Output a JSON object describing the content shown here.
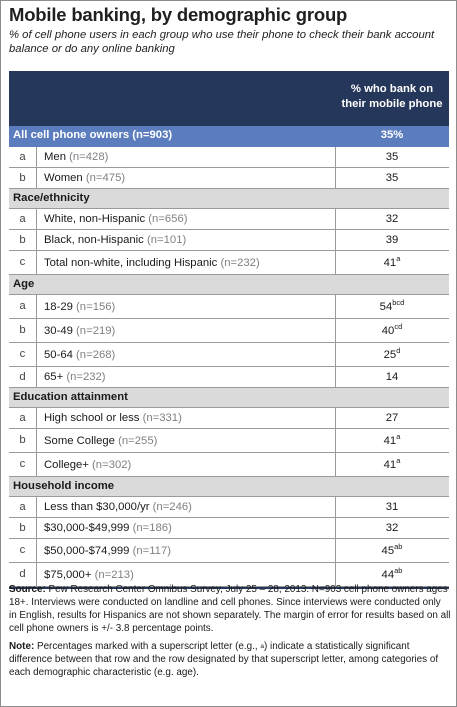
{
  "title": "Mobile banking, by demographic group",
  "subtitle": "% of cell phone users in each group who use their phone to check their bank account balance or do any online banking",
  "header": {
    "column_line1": "% who bank on",
    "column_line2": "their mobile phone"
  },
  "all": {
    "label": "All cell phone owners (n=903)",
    "value": "35%"
  },
  "rows_gender": [
    {
      "letter": "a",
      "label": "Men",
      "n": "(n=428)",
      "value": "35",
      "sup": ""
    },
    {
      "letter": "b",
      "label": "Women",
      "n": "(n=475)",
      "value": "35",
      "sup": ""
    }
  ],
  "sections": {
    "race": "Race/ethnicity",
    "age": "Age",
    "education": "Education attainment",
    "income": "Household income"
  },
  "rows_race": [
    {
      "letter": "a",
      "label": "White, non-Hispanic",
      "n": "(n=656)",
      "value": "32",
      "sup": ""
    },
    {
      "letter": "b",
      "label": "Black, non-Hispanic",
      "n": "(n=101)",
      "value": "39",
      "sup": ""
    },
    {
      "letter": "c",
      "label": "Total non-white, including Hispanic",
      "n": "(n=232)",
      "value": "41",
      "sup": "a"
    }
  ],
  "rows_age": [
    {
      "letter": "a",
      "label": "18-29",
      "n": "(n=156)",
      "value": "54",
      "sup": "bcd"
    },
    {
      "letter": "b",
      "label": "30-49",
      "n": "(n=219)",
      "value": "40",
      "sup": "cd"
    },
    {
      "letter": "c",
      "label": "50-64",
      "n": "(n=268)",
      "value": "25",
      "sup": "d"
    },
    {
      "letter": "d",
      "label": "65+",
      "n": "(n=232)",
      "value": "14",
      "sup": ""
    }
  ],
  "rows_education": [
    {
      "letter": "a",
      "label": "High school or less",
      "n": "(n=331)",
      "value": "27",
      "sup": ""
    },
    {
      "letter": "b",
      "label": "Some College",
      "n": "(n=255)",
      "value": "41",
      "sup": "a"
    },
    {
      "letter": "c",
      "label": "College+",
      "n": "(n=302)",
      "value": "41",
      "sup": "a"
    }
  ],
  "rows_income": [
    {
      "letter": "a",
      "label": "Less than $30,000/yr",
      "n": "(n=246)",
      "value": "31",
      "sup": ""
    },
    {
      "letter": "b",
      "label": "$30,000-$49,999",
      "n": "(n=186)",
      "value": "32",
      "sup": ""
    },
    {
      "letter": "c",
      "label": "$50,000-$74,999",
      "n": "(n=117)",
      "value": "45",
      "sup": "ab"
    },
    {
      "letter": "d",
      "label": "$75,000+",
      "n": "(n=213)",
      "value": "44",
      "sup": "ab"
    }
  ],
  "footer": {
    "source_label": "Source:",
    "source_text": " Pew Research Center Omnibus Survey, July 25 – 28, 2013. N=903 cell phone owners ages 18+. Interviews were conducted on landline and cell phones. Since interviews were conducted only in English, results for Hispanics are not shown separately. The margin of error for results based on all cell phone owners is +/- 3.8 percentage points.",
    "note_label": "Note:",
    "note_text_1": " Percentages marked with a superscript letter (e.g., ",
    "note_sup": "a",
    "note_text_2": ") indicate a statistically significant difference between that row and the row designated by that superscript letter, among categories of each demographic characteristic (e.g. age)."
  }
}
